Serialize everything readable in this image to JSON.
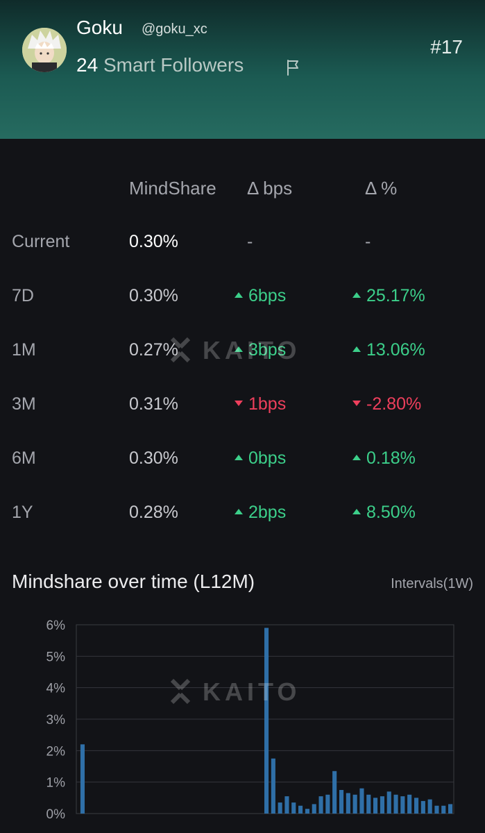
{
  "profile": {
    "name": "Goku",
    "handle": "@goku_xc",
    "followers_count": "24",
    "followers_label": "Smart Followers",
    "rank": "#17"
  },
  "table": {
    "headers": [
      "MindShare",
      "Δ bps",
      "Δ %"
    ],
    "rows": [
      {
        "period": "Current",
        "mindshare": "0.30%",
        "bps": "-",
        "pct": "-",
        "trend": "none"
      },
      {
        "period": "7D",
        "mindshare": "0.30%",
        "bps": "6bps",
        "pct": "25.17%",
        "trend": "up"
      },
      {
        "period": "1M",
        "mindshare": "0.27%",
        "bps": "3bps",
        "pct": "13.06%",
        "trend": "up"
      },
      {
        "period": "3M",
        "mindshare": "0.31%",
        "bps": "1bps",
        "pct": "-2.80%",
        "trend": "down"
      },
      {
        "period": "6M",
        "mindshare": "0.30%",
        "bps": "0bps",
        "pct": "0.18%",
        "trend": "up"
      },
      {
        "period": "1Y",
        "mindshare": "0.28%",
        "bps": "2bps",
        "pct": "8.50%",
        "trend": "up"
      }
    ]
  },
  "watermark": "KAITO",
  "chart_section": {
    "title": "Mindshare over time (L12M)",
    "intervals": "Intervals(1W)"
  },
  "colors": {
    "up": "#3ccf8a",
    "down": "#ee3f5c",
    "bar": "#2f6fa7",
    "header_bg": "#1b5a52"
  },
  "chart_data": {
    "type": "bar",
    "title": "Mindshare over time (L12M)",
    "ylabel": "",
    "xlabel": "",
    "ylim": [
      0,
      6
    ],
    "yticks": [
      "0%",
      "1%",
      "2%",
      "3%",
      "4%",
      "5%",
      "6%"
    ],
    "grid": true,
    "legend": "none",
    "values": [
      2.2,
      0,
      0,
      0,
      0,
      0,
      0,
      0,
      0,
      0,
      0,
      0,
      0,
      0,
      0,
      0,
      0,
      0,
      0,
      0,
      0,
      0,
      0,
      0,
      0,
      0,
      0,
      5.9,
      1.75,
      0.35,
      0.55,
      0.35,
      0.25,
      0.15,
      0.3,
      0.55,
      0.6,
      1.35,
      0.75,
      0.65,
      0.6,
      0.8,
      0.6,
      0.5,
      0.55,
      0.7,
      0.6,
      0.55,
      0.6,
      0.5,
      0.4,
      0.45,
      0.25,
      0.25,
      0.3
    ]
  }
}
